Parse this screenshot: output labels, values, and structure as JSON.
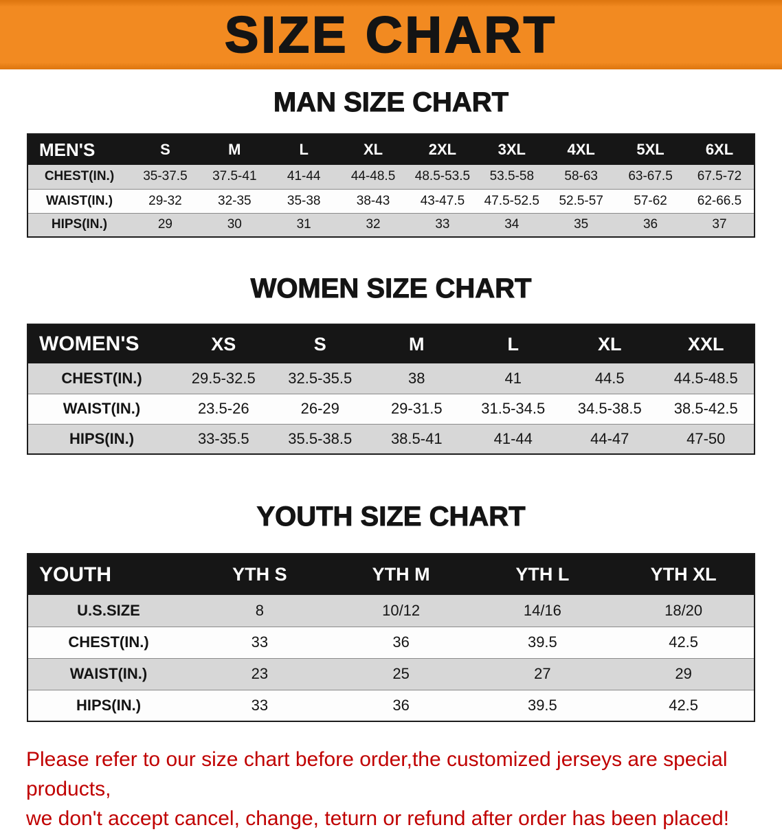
{
  "banner": {
    "title": "SIZE CHART"
  },
  "sections": [
    {
      "id": "men",
      "heading": "MAN SIZE CHART",
      "table": {
        "header": [
          "MEN'S",
          "S",
          "M",
          "L",
          "XL",
          "2XL",
          "3XL",
          "4XL",
          "5XL",
          "6XL"
        ],
        "rows": [
          [
            "CHEST(IN.)",
            "35-37.5",
            "37.5-41",
            "41-44",
            "44-48.5",
            "48.5-53.5",
            "53.5-58",
            "58-63",
            "63-67.5",
            "67.5-72"
          ],
          [
            "WAIST(IN.)",
            "29-32",
            "32-35",
            "35-38",
            "38-43",
            "43-47.5",
            "47.5-52.5",
            "52.5-57",
            "57-62",
            "62-66.5"
          ],
          [
            "HIPS(IN.)",
            "29",
            "30",
            "31",
            "32",
            "33",
            "34",
            "35",
            "36",
            "37"
          ]
        ]
      }
    },
    {
      "id": "women",
      "heading": "WOMEN SIZE CHART",
      "table": {
        "header": [
          "WOMEN'S",
          "XS",
          "S",
          "M",
          "L",
          "XL",
          "XXL"
        ],
        "rows": [
          [
            "CHEST(IN.)",
            "29.5-32.5",
            "32.5-35.5",
            "38",
            "41",
            "44.5",
            "44.5-48.5"
          ],
          [
            "WAIST(IN.)",
            "23.5-26",
            "26-29",
            "29-31.5",
            "31.5-34.5",
            "34.5-38.5",
            "38.5-42.5"
          ],
          [
            "HIPS(IN.)",
            "33-35.5",
            "35.5-38.5",
            "38.5-41",
            "41-44",
            "44-47",
            "47-50"
          ]
        ]
      }
    },
    {
      "id": "youth",
      "heading": "YOUTH SIZE CHART",
      "table": {
        "header": [
          "YOUTH",
          "YTH S",
          "YTH M",
          "YTH L",
          "YTH XL"
        ],
        "rows": [
          [
            "U.S.SIZE",
            "8",
            "10/12",
            "14/16",
            "18/20"
          ],
          [
            "CHEST(IN.)",
            "33",
            "36",
            "39.5",
            "42.5"
          ],
          [
            "WAIST(IN.)",
            "23",
            "25",
            "27",
            "29"
          ],
          [
            "HIPS(IN.)",
            "33",
            "36",
            "39.5",
            "42.5"
          ]
        ]
      }
    }
  ],
  "footer": {
    "lines": [
      "Please refer to our size chart before order,the customized jerseys are special products,",
      "we don't accept cancel, change, teturn or refund after order has been placed!"
    ]
  },
  "colors": {
    "banner_bg": "#F28A21",
    "header_bg": "#161616",
    "header_text": "#FFFFFF",
    "row_alt_bg": "#D7D7D7",
    "footer_text": "#C00000"
  }
}
